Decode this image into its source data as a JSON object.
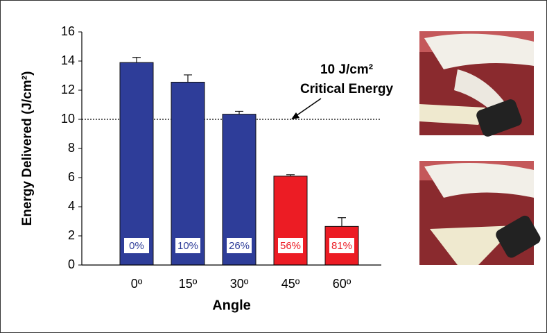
{
  "chart_data": {
    "type": "bar",
    "categories": [
      "0º",
      "15º",
      "30º",
      "45º",
      "60º"
    ],
    "values": [
      13.9,
      12.55,
      10.35,
      6.1,
      2.65
    ],
    "errors": [
      0.35,
      0.5,
      0.2,
      0.1,
      0.6
    ],
    "colors": [
      "#2e3d99",
      "#2e3d99",
      "#2e3d99",
      "#ec1c24",
      "#ec1c24"
    ],
    "bar_labels": [
      "0%",
      "10%",
      "26%",
      "56%",
      "81%"
    ],
    "x_label": "Angle",
    "y_label": "Energy Delivered (J/cm²)",
    "ylim": [
      0,
      16
    ],
    "yticks": [
      0,
      2,
      4,
      6,
      8,
      10,
      12,
      14,
      16
    ],
    "reference_line": 10,
    "annotation": [
      "10 J/cm²",
      "Critical Energy"
    ]
  }
}
